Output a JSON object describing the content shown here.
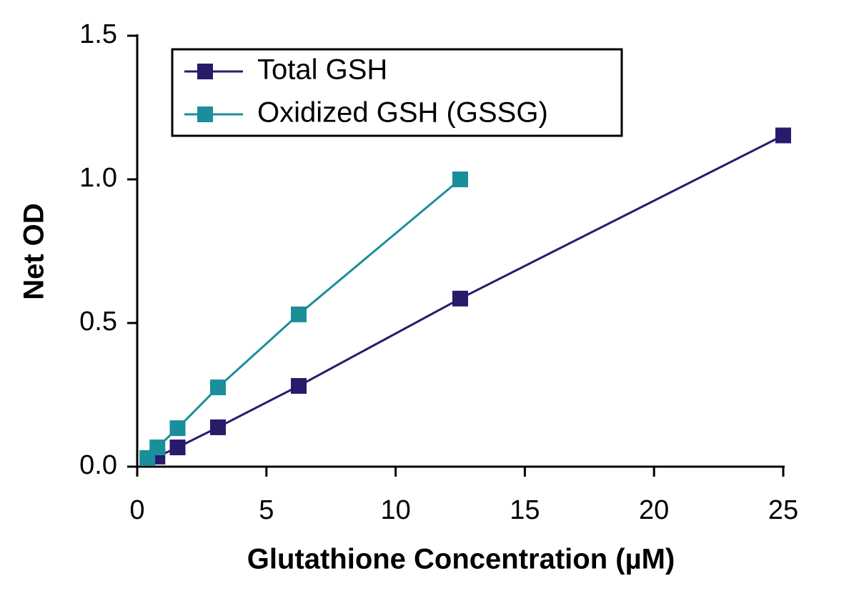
{
  "chart_data": {
    "type": "line",
    "xlabel": "Glutathione Concentration (µM)",
    "ylabel": "Net OD",
    "xlim": [
      0,
      25
    ],
    "ylim": [
      0,
      1.5
    ],
    "xticks": [
      0,
      5,
      10,
      15,
      20,
      25
    ],
    "yticks": [
      {
        "value": 0,
        "label": "0.0"
      },
      0.5,
      {
        "value": 1,
        "label": "1.0"
      },
      1.5
    ],
    "legend": "upper left",
    "series": [
      {
        "name": "Total GSH",
        "color": "#271b6c",
        "x": [
          0.78125,
          1.5625,
          3.125,
          6.25,
          12.5,
          25
        ],
        "values": [
          0.035,
          0.067,
          0.137,
          0.281,
          0.585,
          1.153
        ]
      },
      {
        "name": "Oxidized GSH (GSSG)",
        "color": "#1b8e9b",
        "x": [
          0.390625,
          0.78125,
          1.5625,
          3.125,
          6.25,
          12.5
        ],
        "values": [
          0.03,
          0.067,
          0.134,
          0.276,
          0.53,
          1.0
        ]
      }
    ]
  }
}
